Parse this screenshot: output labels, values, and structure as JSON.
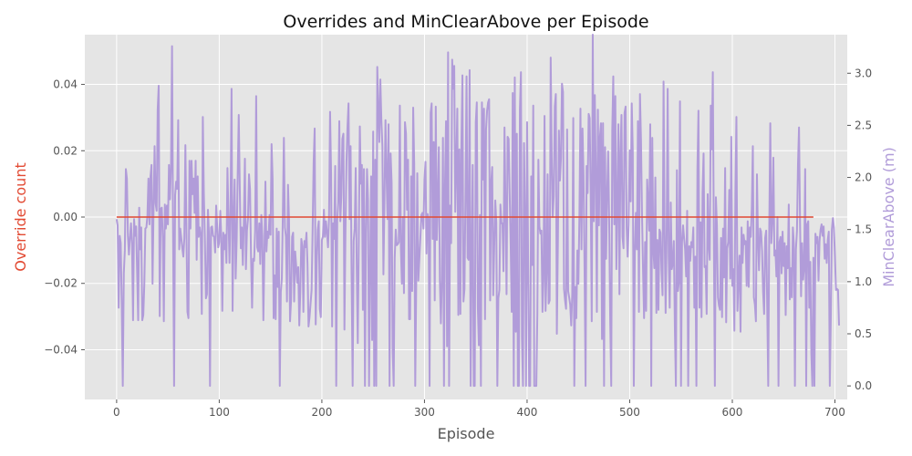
{
  "chart_data": {
    "type": "line",
    "title": "Overrides and MinClearAbove per Episode",
    "xlabel": "Episode",
    "ylabel_left": "Override count",
    "ylabel_right": "MinClearAbove (m)",
    "xlim": [
      -31,
      712
    ],
    "ylim_left": [
      -0.055,
      0.055
    ],
    "ylim_right": [
      -0.13,
      3.37
    ],
    "x_ticks": [
      0,
      100,
      200,
      300,
      400,
      500,
      600,
      700
    ],
    "y_left_ticks": [
      -0.04,
      -0.02,
      0.0,
      0.02,
      0.04
    ],
    "y_left_tick_labels": [
      "−0.04",
      "−0.02",
      "0.00",
      "0.02",
      "0.04"
    ],
    "y_right_ticks": [
      0.0,
      0.5,
      1.0,
      1.5,
      2.0,
      2.5,
      3.0
    ],
    "y_right_tick_labels": [
      "0.0",
      "0.5",
      "1.0",
      "1.5",
      "2.0",
      "2.5",
      "3.0"
    ],
    "grid": true,
    "background": "#e5e5e5",
    "series": [
      {
        "name": "Override count",
        "axis": "left",
        "color": "#e24a33",
        "x": [
          0,
          679
        ],
        "values": [
          0,
          0
        ]
      },
      {
        "name": "MinClearAbove (m)",
        "axis": "right",
        "color": "#b19cd9",
        "x_start": 0,
        "x_step": 1,
        "values": [
          1.6,
          1.54,
          0.75,
          1.44,
          1.37,
          0.78,
          0.0,
          1.08,
          1.3,
          2.08,
          1.99,
          1.44,
          1.26,
          1.42,
          1.56,
          1.37,
          0.63,
          1.6,
          1.44,
          1.53,
          1.08,
          0.63,
          1.71,
          1.31,
          1.52,
          0.63,
          0.68,
          0.98,
          1.51,
          1.52,
          1.63,
          1.99,
          1.55,
          2.01,
          2.12,
          0.98,
          1.71,
          2.3,
          1.75,
          1.68,
          2.65,
          2.88,
          0.67,
          1.7,
          1.71,
          1.42,
          0.62,
          1.74,
          1.51,
          1.73,
          1.55,
          2.12,
          1.79,
          2.1,
          3.26,
          1.49,
          0.0,
          1.83,
          1.96,
          1.89,
          2.55,
          1.31,
          1.51,
          1.42,
          1.32,
          1.24,
          1.42,
          2.31,
          1.51,
          0.71,
          0.65,
          2.16,
          1.51,
          2.16,
          1.84,
          1.99,
          1.66,
          2.16,
          1.21,
          2.01,
          1.43,
          1.52,
          1.44,
          0.69,
          2.58,
          1.84,
          1.42,
          0.84,
          0.88,
          1.69,
          1.45,
          0.0,
          1.52,
          1.53,
          1.44,
          1.43,
          1.28,
          1.73,
          1.53,
          1.33,
          1.38,
          1.68,
          1.43,
          0.72,
          1.47,
          1.31,
          1.45,
          1.18,
          2.09,
          1.62,
          1.18,
          1.72,
          2.85,
          0.72,
          1.59,
          1.98,
          1.03,
          1.4,
          2.03,
          2.6,
          1.91,
          1.32,
          1.52,
          1.16,
          1.58,
          2.18,
          1.12,
          1.49,
          1.6,
          2.03,
          1.89,
          1.22,
          0.75,
          1.22,
          1.2,
          1.49,
          2.78,
          1.33,
          1.29,
          1.56,
          1.17,
          1.64,
          1.44,
          0.63,
          1.26,
          1.96,
          1.29,
          1.48,
          1.42,
          1.64,
          1.45,
          2.32,
          1.99,
          0.65,
          1.06,
          0.64,
          1.51,
          0.95,
          1.48,
          0.0,
          0.9,
          1.03,
          1.66,
          2.38,
          1.52,
          1.43,
          0.81,
          1.93,
          1.6,
          0.62,
          0.83,
          1.43,
          1.47,
          0.81,
          1.29,
          1.15,
          0.99,
          1.14,
          0.58,
          0.91,
          1.41,
          1.34,
          0.71,
          1.39,
          1.33,
          1.47,
          1.17,
          0.57,
          0.66,
          0.79,
          0.92,
          1.51,
          2.15,
          2.47,
          0.59,
          1.17,
          1.5,
          1.58,
          0.74,
          0.66,
          1.4,
          1.43,
          1.69,
          1.43,
          1.58,
          1.47,
          1.33,
          1.61,
          2.63,
          2.04,
          0.57,
          1.56,
          1.41,
          2.11,
          0.0,
          1.59,
          1.76,
          2.54,
          1.58,
          1.83,
          2.37,
          2.42,
          0.54,
          1.47,
          2.15,
          2.49,
          2.71,
          1.6,
          2.3,
          1.05,
          0.0,
          1.39,
          1.51,
          2.09,
          1.11,
          0.41,
          1.39,
          2.49,
          1.94,
          2.12,
          0.73,
          2.08,
          0.0,
          1.46,
          2.08,
          1.79,
          0.0,
          1.12,
          2.01,
          0.44,
          2.44,
          0.0,
          2.17,
          0.0,
          3.06,
          2.67,
          2.34,
          2.94,
          2.55,
          2.3,
          1.07,
          1.77,
          2.55,
          2.04,
          1.6,
          2.51,
          0.0,
          2.23,
          1.95,
          0.34,
          0.0,
          1.23,
          1.5,
          1.35,
          1.36,
          1.38,
          2.69,
          1.32,
          0.98,
          1.62,
          0.89,
          2.53,
          2.42,
          1.69,
          2.17,
          0.64,
          0.64,
          2.01,
          0.91,
          2.67,
          2.13,
          0.0,
          1.01,
          2.04,
          1.01,
          1.21,
          1.42,
          1.64,
          1.66,
          1.51,
          1.98,
          2.15,
          1.27,
          1.65,
          1.59,
          0.0,
          2.62,
          2.71,
          1.41,
          2.34,
          0.82,
          2.68,
          1.4,
          1.76,
          2.29,
          1.01,
          0.6,
          1.02,
          2.38,
          0.0,
          1.93,
          2.54,
          0.38,
          3.2,
          0.0,
          1.73,
          1.37,
          3.13,
          2.85,
          3.07,
          1.67,
          2.13,
          2.66,
          0.68,
          2.27,
          0.69,
          2.32,
          2.98,
          0.81,
          0.93,
          1.87,
          2.97,
          1.23,
          1.21,
          3.03,
          0.0,
          1.21,
          2.12,
          0.0,
          0.0,
          2.53,
          2.72,
          0.75,
          0.39,
          1.64,
          0.0,
          2.72,
          1.98,
          2.66,
          0.64,
          2.46,
          2.64,
          2.72,
          2.75,
          0.82,
          1.95,
          2.1,
          0.87,
          1.34,
          1.78,
          1.57,
          0.0,
          0.84,
          0.92,
          1.74,
          1.56,
          1.56,
          1.1,
          2.48,
          1.69,
          0.88,
          2.39,
          2.37,
          1.85,
          1.36,
          0.71,
          2.81,
          0.0,
          2.96,
          0.52,
          2.42,
          0.0,
          0.0,
          2.65,
          3.01,
          0.46,
          0.0,
          2.33,
          1.65,
          0.0,
          2.53,
          1.22,
          0.0,
          0.0,
          2.01,
          1.16,
          2.69,
          0.0,
          0.0,
          0.0,
          0.69,
          2.17,
          1.53,
          1.46,
          1.49,
          0.71,
          1.03,
          2.59,
          0.72,
          1.09,
          2.03,
          0.79,
          0.82,
          3.15,
          2.2,
          1.62,
          1.83,
          2.68,
          2.8,
          0.5,
          1.36,
          2.45,
          1.97,
          2.18,
          2.9,
          2.82,
          0.93,
          0.82,
          0.74,
          2.46,
          0.91,
          0.85,
          0.78,
          0.58,
          0.88,
          2.57,
          0.0,
          0.95,
          0.65,
          1.3,
          0.98,
          1.63,
          2.66,
          1.31,
          2.47,
          2.02,
          1.12,
          0.0,
          2.11,
          1.85,
          2.61,
          2.57,
          1.83,
          0.62,
          3.39,
          1.58,
          2.79,
          2.04,
          0.71,
          2.65,
          1.54,
          2.39,
          2.52,
          0.45,
          2.52,
          0.0,
          2.29,
          1.22,
          1.84,
          2.25,
          1.58,
          0.63,
          0.0,
          2.45,
          2.97,
          1.55,
          2.78,
          1.12,
          1.73,
          2.51,
          0.88,
          2.24,
          2.6,
          1.43,
          1.32,
          2.62,
          2.68,
          1.52,
          1.24,
          1.55,
          2.26,
          1.77,
          2.71,
          2.25,
          0.0,
          1.27,
          1.66,
          1.31,
          2.54,
          0.71,
          2.8,
          2.36,
          1.64,
          1.11,
          0.65,
          1.38,
          0.72,
          1.98,
          1.76,
          1.49,
          2.51,
          0.0,
          2.38,
          1.32,
          1.13,
          2.0,
          0.7,
          1.4,
          0.73,
          1.5,
          1.47,
          1.1,
          0.87,
          2.92,
          1.52,
          0.7,
          1.42,
          2.85,
          1.24,
          0.75,
          1.76,
          1.12,
          1.18,
          1.39,
          0.56,
          0.0,
          2.07,
          0.91,
          1.0,
          2.73,
          0.0,
          1.38,
          1.54,
          1.42,
          1.31,
          1.05,
          1.68,
          0.0,
          1.34,
          1.2,
          1.38,
          1.33,
          1.52,
          0.75,
          1.24,
          0.0,
          2.09,
          2.64,
          0.75,
          1.57,
          0.66,
          1.86,
          2.23,
          1.14,
          1.15,
          0.69,
          1.84,
          1.36,
          1.21,
          2.69,
          2.27,
          3.01,
          1.41,
          0.0,
          1.81,
          1.54,
          0.85,
          0.77,
          0.73,
          1.42,
          0.66,
          1.51,
          1.04,
          2.09,
          0.61,
          1.32,
          1.38,
          1.88,
          1.03,
          2.39,
          0.96,
          1.12,
          0.53,
          1.87,
          2.58,
          0.72,
          1.02,
          1.25,
          0.52,
          1.52,
          1.18,
          1.45,
          1.36,
          1.39,
          0.96,
          1.58,
          0.95,
          1.52,
          1.43,
          1.71,
          2.3,
          0.85,
          0.78,
          0.62,
          2.03,
          1.42,
          1.11,
          1.51,
          1.48,
          1.29,
          0.9,
          0.69,
          1.42,
          1.49,
          0.76,
          0.0,
          1.52,
          2.52,
          1.37,
          1.58,
          2.19,
          1.25,
          1.3,
          1.05,
          1.62,
          0.0,
          1.38,
          1.43,
          1.08,
          1.48,
          1.15,
          1.37,
          0.68,
          1.34,
          1.13,
          1.74,
          0.83,
          1.13,
          0.85,
          1.52,
          1.36,
          0.0,
          1.31,
          1.49,
          2.13,
          2.48,
          1.56,
          0.86,
          1.37,
          1.02,
          1.14,
          2.08,
          0.0,
          1.55,
          1.58,
          0.75,
          1.19,
          0.31,
          0.0,
          1.23,
          0.0,
          1.46,
          1.37,
          1.43,
          1.01,
          1.39,
          1.5,
          1.55,
          1.44,
          1.53,
          1.22,
          1.36,
          1.18,
          1.4,
          1.48,
          0.0,
          0.66,
          1.5,
          1.61,
          1.52,
          1.25,
          0.92,
          0.93,
          0.92,
          0.58
        ]
      }
    ]
  }
}
